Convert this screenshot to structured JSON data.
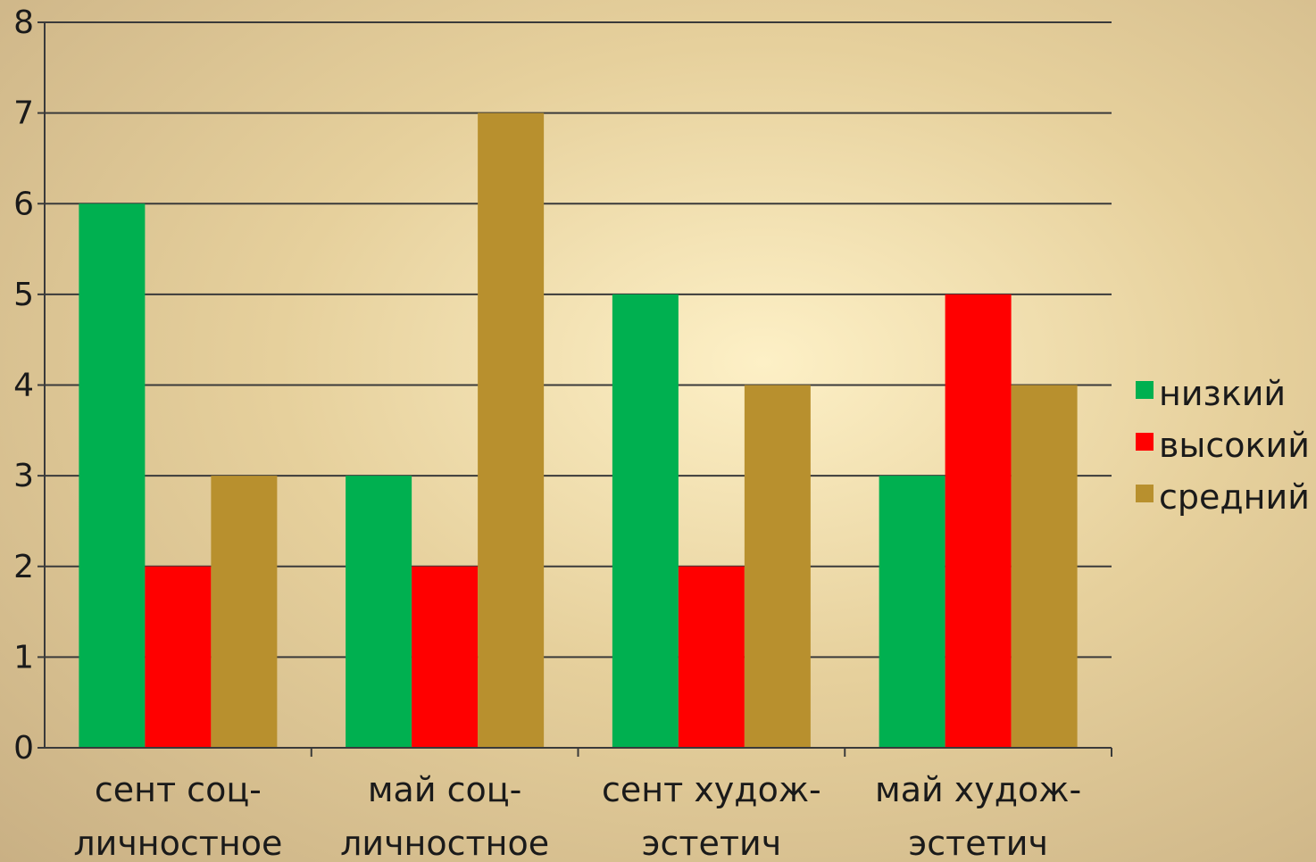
{
  "chart_data": {
    "type": "bar",
    "categories": [
      [
        "сент соц-",
        "личностное"
      ],
      [
        "май соц-",
        "личностное"
      ],
      [
        "сент худож-",
        "эстетич"
      ],
      [
        "май худож-",
        "эстетич"
      ]
    ],
    "series": [
      {
        "name": "низкий",
        "values": [
          6,
          3,
          5,
          3
        ],
        "color": "#00b050"
      },
      {
        "name": "высокий",
        "values": [
          2,
          2,
          2,
          5
        ],
        "color": "#ff0000"
      },
      {
        "name": "средний",
        "values": [
          3,
          7,
          4,
          4
        ],
        "color": "#b8902e"
      }
    ],
    "ylim": [
      0,
      8
    ],
    "yticks": [
      0,
      1,
      2,
      3,
      4,
      5,
      6,
      7,
      8
    ],
    "grid": true,
    "legend": "right",
    "title": "",
    "xlabel": "",
    "ylabel": ""
  }
}
